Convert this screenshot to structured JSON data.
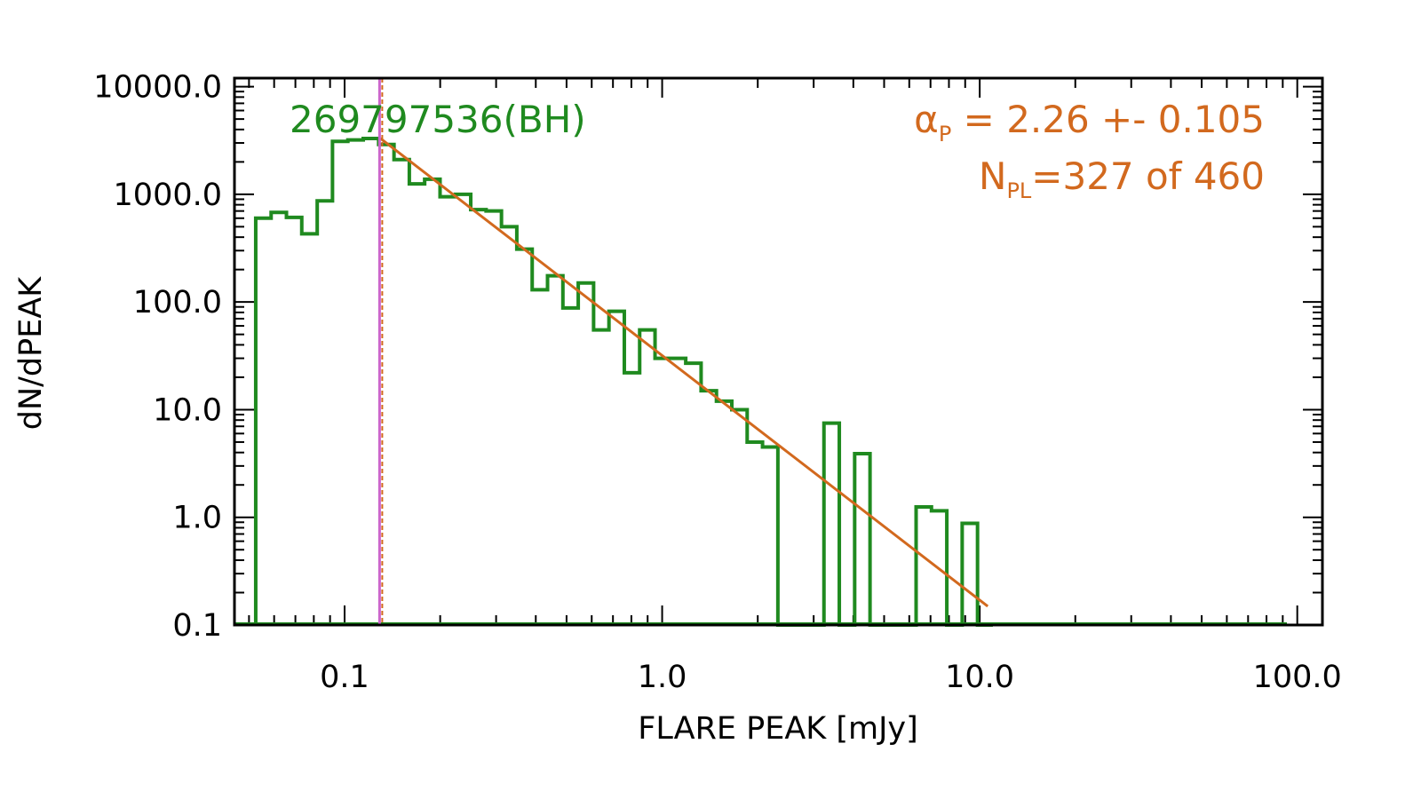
{
  "chart_data": {
    "type": "histogram",
    "title": "",
    "xlabel": "FLARE PEAK [mJy]",
    "ylabel": "dN/dPEAK",
    "xscale": "log",
    "yscale": "log",
    "xlim": [
      0.045,
      120
    ],
    "ylim": [
      0.1,
      12000
    ],
    "xticks": [
      0.1,
      1.0,
      10.0,
      100.0
    ],
    "xtick_labels": [
      "0.1",
      "1.0",
      "10.0",
      "100.0"
    ],
    "yticks": [
      0.1,
      1.0,
      10.0,
      100.0,
      1000.0,
      10000.0
    ],
    "ytick_labels": [
      "0.1",
      "1.0",
      "10.0",
      "100.0",
      "1000.0",
      "10000.0"
    ],
    "grid": false,
    "star_label": "269797536(BH)",
    "fit_text": {
      "alpha_symbol": "α",
      "alpha_sub": "P",
      "alpha_value": " = 2.26 +- 0.105",
      "n_symbol": "N",
      "n_sub": "PL",
      "n_value": "=327 of 460"
    },
    "colors": {
      "histogram": "#1f8a1f",
      "fit": "#d2691e",
      "threshold_line": "#cc66cc",
      "axes": "#000000"
    },
    "histogram": {
      "bin_edges": [
        0.0525,
        0.0587,
        0.0656,
        0.0733,
        0.082,
        0.0916,
        0.1024,
        0.1145,
        0.128,
        0.1431,
        0.1599,
        0.1787,
        0.1998,
        0.2233,
        0.2496,
        0.279,
        0.3119,
        0.3486,
        0.3897,
        0.4356,
        0.4869,
        0.5442,
        0.6083,
        0.68,
        0.7601,
        0.8496,
        0.9497,
        1.0615,
        1.1865,
        1.3263,
        1.4825,
        1.6571,
        1.8523,
        2.0705,
        2.3144,
        2.587,
        2.8917,
        3.2323,
        3.6131,
        4.0386,
        4.5144,
        5.0461,
        5.6405,
        6.3049,
        7.0476,
        7.8777,
        8.8056,
        9.8428,
        11.0022
      ],
      "counts": [
        600,
        680,
        610,
        430,
        870,
        3100,
        3200,
        3300,
        2900,
        2100,
        1250,
        1380,
        950,
        1000,
        720,
        700,
        500,
        310,
        130,
        175,
        88,
        150,
        55,
        82,
        22,
        55,
        30,
        30,
        27,
        15,
        12,
        10,
        5,
        4.5,
        0.1,
        0.1,
        0.1,
        7.5,
        0.1,
        3.9,
        0.1,
        0.1,
        0.1,
        1.25,
        1.15,
        0.1,
        0.88,
        0.1
      ]
    },
    "fit_line": {
      "x": [
        0.1297,
        10.6
      ],
      "y": [
        3300,
        0.149
      ]
    },
    "threshold": {
      "x": 0.1297
    }
  }
}
